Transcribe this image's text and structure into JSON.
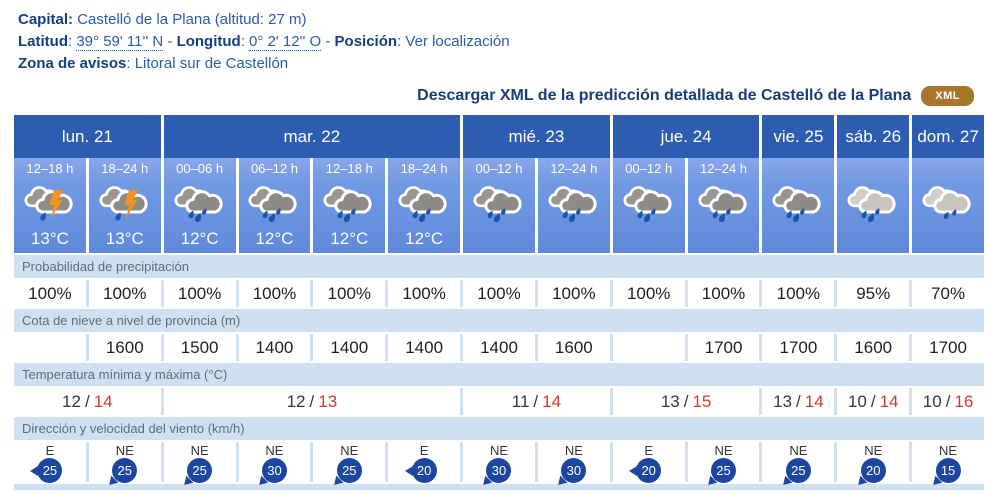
{
  "info": {
    "capital_label": "Capital:",
    "capital_value": "Castelló de la Plana (altitud: 27 m)",
    "latitud_label": "Latitud",
    "latitud_value": "39° 59' 11'' N",
    "longitud_label": "Longitud",
    "longitud_value": "0° 2' 12'' O",
    "posicion_label": "Posición",
    "posicion_link": "Ver localización",
    "zona_label": "Zona de avisos",
    "zona_value": "Litoral sur de Castellón",
    "colon": ":",
    "dash": "-"
  },
  "download": {
    "text": "Descargar XML de la predicción detallada de Castelló de la Plana",
    "button": "XML"
  },
  "row_labels": {
    "precip": "Probabilidad de precipitación",
    "snow": "Cota de nieve a nivel de provincia (m)",
    "temp": "Temperatura mínima y máxima (°C)",
    "wind": "Dirección y velocidad del viento (km/h)"
  },
  "days": [
    {
      "label": "lun. 21",
      "span": 2
    },
    {
      "label": "mar. 22",
      "span": 4
    },
    {
      "label": "mié. 23",
      "span": 2
    },
    {
      "label": "jue. 24",
      "span": 2
    },
    {
      "label": "vie. 25",
      "span": 1
    },
    {
      "label": "sáb. 26",
      "span": 1
    },
    {
      "label": "dom. 27",
      "span": 1
    }
  ],
  "columns": [
    {
      "time": "12–18 h",
      "icon": "storm",
      "temp": "13°C",
      "precip": "100%",
      "snow": "",
      "wind_dir": "E",
      "wind_speed": "25"
    },
    {
      "time": "18–24 h",
      "icon": "storm",
      "temp": "13°C",
      "precip": "100%",
      "snow": "1600",
      "wind_dir": "NE",
      "wind_speed": "25"
    },
    {
      "time": "00–06 h",
      "icon": "rain",
      "temp": "12°C",
      "precip": "100%",
      "snow": "1500",
      "wind_dir": "NE",
      "wind_speed": "25"
    },
    {
      "time": "06–12 h",
      "icon": "rain",
      "temp": "12°C",
      "precip": "100%",
      "snow": "1400",
      "wind_dir": "NE",
      "wind_speed": "30"
    },
    {
      "time": "12–18 h",
      "icon": "rain",
      "temp": "12°C",
      "precip": "100%",
      "snow": "1400",
      "wind_dir": "NE",
      "wind_speed": "25"
    },
    {
      "time": "18–24 h",
      "icon": "rain",
      "temp": "12°C",
      "precip": "100%",
      "snow": "1400",
      "wind_dir": "E",
      "wind_speed": "20"
    },
    {
      "time": "00–12 h",
      "icon": "rain",
      "temp": "",
      "precip": "100%",
      "snow": "1400",
      "wind_dir": "NE",
      "wind_speed": "30"
    },
    {
      "time": "12–24 h",
      "icon": "rain",
      "temp": "",
      "precip": "100%",
      "snow": "1600",
      "wind_dir": "NE",
      "wind_speed": "30"
    },
    {
      "time": "00–12 h",
      "icon": "rain",
      "temp": "",
      "precip": "100%",
      "snow": "",
      "wind_dir": "E",
      "wind_speed": "20"
    },
    {
      "time": "12–24 h",
      "icon": "rain",
      "temp": "",
      "precip": "100%",
      "snow": "1700",
      "wind_dir": "NE",
      "wind_speed": "25"
    },
    {
      "time": "",
      "icon": "rain",
      "temp": "",
      "precip": "100%",
      "snow": "1700",
      "wind_dir": "NE",
      "wind_speed": "25"
    },
    {
      "time": "",
      "icon": "rain-light",
      "temp": "",
      "precip": "95%",
      "snow": "1600",
      "wind_dir": "NE",
      "wind_speed": "20"
    },
    {
      "time": "",
      "icon": "drizzle",
      "temp": "",
      "precip": "70%",
      "snow": "1700",
      "wind_dir": "NE",
      "wind_speed": "15"
    }
  ],
  "temps": [
    {
      "min": "12",
      "sep": "/",
      "max": "14",
      "span": 2
    },
    {
      "min": "12",
      "sep": "/",
      "max": "13",
      "span": 4
    },
    {
      "min": "11",
      "sep": "/",
      "max": "14",
      "span": 2
    },
    {
      "min": "13",
      "sep": "/",
      "max": "15",
      "span": 2
    },
    {
      "min": "13",
      "sep": "/",
      "max": "14",
      "span": 1
    },
    {
      "min": "10",
      "sep": "/",
      "max": "14",
      "span": 1
    },
    {
      "min": "10",
      "sep": "/",
      "max": "16",
      "span": 1
    }
  ],
  "colors": {
    "day_header": "#2d5db0",
    "cell_blue_top": "#88a6ea",
    "cell_blue_bottom": "#5f89da",
    "label_row": "#cfe1f0",
    "temp_max_red": "#d43a2c",
    "wind_badge": "#1d46a0",
    "xml_button": "#a8762b",
    "lightning_orange": "#f6921e",
    "raindrop_blue": "#1d52ad"
  }
}
